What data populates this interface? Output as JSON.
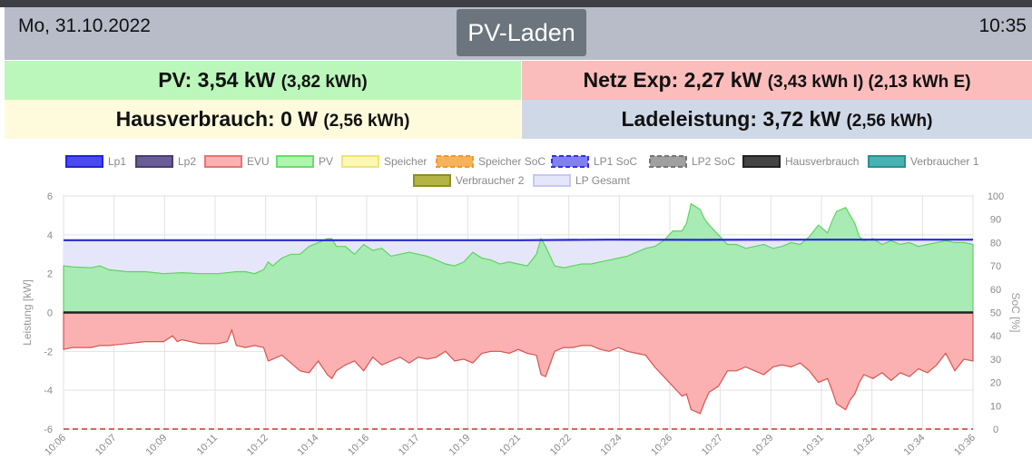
{
  "header": {
    "date": "Mo, 31.10.2022",
    "title": "PV-Laden",
    "time": "10:35"
  },
  "tiles": {
    "pv": {
      "main": "PV: 3,54 kW",
      "sub": "(3,82 kWh)"
    },
    "netz": {
      "main": "Netz Exp: 2,27 kW",
      "sub": "(3,43 kWh I) (2,13 kWh E)"
    },
    "haus": {
      "main": "Hausverbrauch: 0 W",
      "sub": "(2,56 kWh)"
    },
    "lade": {
      "main": "Ladeleistung: 3,72 kW",
      "sub": "(2,56 kWh)"
    }
  },
  "colors": {
    "pv_tile": "#bbf7bb",
    "netz_tile": "#fbbcbc",
    "haus_tile": "#fefbdd",
    "lade_tile": "#cfd8e6",
    "header": "#b7bcc8",
    "title_button": "#6c757d"
  },
  "chart_data": {
    "type": "area",
    "y_left_label": "Leistung [kW]",
    "y_right_label": "SoC [%]",
    "y_left_range": [
      -6,
      6
    ],
    "y_left_ticks": [
      "6",
      "4",
      "2",
      "0",
      "-2",
      "-4",
      "-6"
    ],
    "y_right_range": [
      0,
      100
    ],
    "y_right_ticks": [
      "100",
      "90",
      "80",
      "70",
      "60",
      "50",
      "40",
      "30",
      "20",
      "10",
      "0"
    ],
    "x_ticks": [
      "10:06",
      "10:07",
      "10:09",
      "10:11",
      "10:12",
      "10:14",
      "10:16",
      "10:17",
      "10:19",
      "10:21",
      "10:22",
      "10:24",
      "10:26",
      "10:27",
      "10:29",
      "10:31",
      "10:32",
      "10:34",
      "10:36"
    ],
    "grid": true,
    "legend_position": "top",
    "legend": [
      {
        "name": "Lp1",
        "fill": "#4a4af0",
        "stroke": "#2222dd",
        "dashed": false
      },
      {
        "name": "Lp2",
        "fill": "#6a5c94",
        "stroke": "#4a3c74",
        "dashed": false
      },
      {
        "name": "EVU",
        "fill": "#fbb1b1",
        "stroke": "#e87474",
        "dashed": false
      },
      {
        "name": "PV",
        "fill": "#aef5ae",
        "stroke": "#6bdc6b",
        "dashed": false
      },
      {
        "name": "Speicher",
        "fill": "#fdf7b4",
        "stroke": "#f0e37a",
        "dashed": false
      },
      {
        "name": "Speicher SoC",
        "fill": "#f7b25a",
        "stroke": "#f09a2c",
        "dashed": true
      },
      {
        "name": "LP1 SoC",
        "fill": "#8080f0",
        "stroke": "#3333dd",
        "dashed": true
      },
      {
        "name": "LP2 SoC",
        "fill": "#a0a0a0",
        "stroke": "#777777",
        "dashed": true
      },
      {
        "name": "Hausverbrauch",
        "fill": "#444444",
        "stroke": "#222222",
        "dashed": false
      },
      {
        "name": "Verbraucher 1",
        "fill": "#46b2b2",
        "stroke": "#2a9090",
        "dashed": false
      },
      {
        "name": "Verbraucher 2",
        "fill": "#b4b446",
        "stroke": "#8e8e2a",
        "dashed": false
      },
      {
        "name": "LP Gesamt",
        "fill": "#e6e6fa",
        "stroke": "#c8c8ee",
        "dashed": false
      }
    ],
    "series": [
      {
        "name": "PV",
        "unit": "kW",
        "points": [
          [
            0,
            2.4
          ],
          [
            0.01,
            2.35
          ],
          [
            0.03,
            2.3
          ],
          [
            0.04,
            2.4
          ],
          [
            0.05,
            2.2
          ],
          [
            0.07,
            2.1
          ],
          [
            0.09,
            2.1
          ],
          [
            0.11,
            2.0
          ],
          [
            0.13,
            2.05
          ],
          [
            0.15,
            2.0
          ],
          [
            0.17,
            2.0
          ],
          [
            0.19,
            2.1
          ],
          [
            0.2,
            2.1
          ],
          [
            0.21,
            2.0
          ],
          [
            0.22,
            2.2
          ],
          [
            0.225,
            2.6
          ],
          [
            0.23,
            2.4
          ],
          [
            0.24,
            2.8
          ],
          [
            0.25,
            3.0
          ],
          [
            0.26,
            3.0
          ],
          [
            0.27,
            3.4
          ],
          [
            0.28,
            3.6
          ],
          [
            0.29,
            3.8
          ],
          [
            0.295,
            3.8
          ],
          [
            0.3,
            3.4
          ],
          [
            0.31,
            3.4
          ],
          [
            0.32,
            3.0
          ],
          [
            0.33,
            3.5
          ],
          [
            0.34,
            3.2
          ],
          [
            0.35,
            3.3
          ],
          [
            0.36,
            2.9
          ],
          [
            0.37,
            3.0
          ],
          [
            0.38,
            3.1
          ],
          [
            0.39,
            3.0
          ],
          [
            0.4,
            2.9
          ],
          [
            0.41,
            2.7
          ],
          [
            0.42,
            2.5
          ],
          [
            0.43,
            2.4
          ],
          [
            0.44,
            2.6
          ],
          [
            0.45,
            3.1
          ],
          [
            0.46,
            2.8
          ],
          [
            0.47,
            2.7
          ],
          [
            0.48,
            2.5
          ],
          [
            0.49,
            2.6
          ],
          [
            0.5,
            2.5
          ],
          [
            0.51,
            2.4
          ],
          [
            0.52,
            3.0
          ],
          [
            0.525,
            3.8
          ],
          [
            0.53,
            3.4
          ],
          [
            0.54,
            2.4
          ],
          [
            0.55,
            2.3
          ],
          [
            0.56,
            2.4
          ],
          [
            0.57,
            2.5
          ],
          [
            0.58,
            2.5
          ],
          [
            0.59,
            2.6
          ],
          [
            0.6,
            2.7
          ],
          [
            0.61,
            2.8
          ],
          [
            0.62,
            2.9
          ],
          [
            0.63,
            3.1
          ],
          [
            0.64,
            3.3
          ],
          [
            0.65,
            3.4
          ],
          [
            0.66,
            3.7
          ],
          [
            0.67,
            4.2
          ],
          [
            0.68,
            4.2
          ],
          [
            0.685,
            4.6
          ],
          [
            0.69,
            5.6
          ],
          [
            0.7,
            5.3
          ],
          [
            0.705,
            4.8
          ],
          [
            0.71,
            4.5
          ],
          [
            0.72,
            4.0
          ],
          [
            0.73,
            3.5
          ],
          [
            0.74,
            3.5
          ],
          [
            0.75,
            3.3
          ],
          [
            0.76,
            3.4
          ],
          [
            0.77,
            3.5
          ],
          [
            0.78,
            3.3
          ],
          [
            0.79,
            3.4
          ],
          [
            0.8,
            3.6
          ],
          [
            0.81,
            3.5
          ],
          [
            0.82,
            3.9
          ],
          [
            0.83,
            4.5
          ],
          [
            0.84,
            4.1
          ],
          [
            0.845,
            4.7
          ],
          [
            0.85,
            5.2
          ],
          [
            0.86,
            5.4
          ],
          [
            0.865,
            5.0
          ],
          [
            0.87,
            4.6
          ],
          [
            0.875,
            3.9
          ],
          [
            0.88,
            3.7
          ],
          [
            0.89,
            3.8
          ],
          [
            0.9,
            3.5
          ],
          [
            0.91,
            3.7
          ],
          [
            0.92,
            3.5
          ],
          [
            0.93,
            3.6
          ],
          [
            0.94,
            3.4
          ],
          [
            0.95,
            3.5
          ],
          [
            0.96,
            3.6
          ],
          [
            0.97,
            3.7
          ],
          [
            0.98,
            3.6
          ],
          [
            0.99,
            3.6
          ],
          [
            1,
            3.5
          ]
        ]
      },
      {
        "name": "EVU",
        "unit": "kW",
        "points": [
          [
            0,
            -1.9
          ],
          [
            0.01,
            -1.8
          ],
          [
            0.03,
            -1.8
          ],
          [
            0.04,
            -1.7
          ],
          [
            0.05,
            -1.7
          ],
          [
            0.07,
            -1.6
          ],
          [
            0.09,
            -1.5
          ],
          [
            0.11,
            -1.5
          ],
          [
            0.12,
            -1.2
          ],
          [
            0.125,
            -1.5
          ],
          [
            0.13,
            -1.4
          ],
          [
            0.15,
            -1.6
          ],
          [
            0.17,
            -1.6
          ],
          [
            0.18,
            -1.5
          ],
          [
            0.185,
            -0.9
          ],
          [
            0.19,
            -1.7
          ],
          [
            0.2,
            -1.8
          ],
          [
            0.21,
            -1.7
          ],
          [
            0.22,
            -1.8
          ],
          [
            0.225,
            -2.5
          ],
          [
            0.23,
            -2.4
          ],
          [
            0.24,
            -2.2
          ],
          [
            0.25,
            -2.6
          ],
          [
            0.26,
            -3.0
          ],
          [
            0.27,
            -3.1
          ],
          [
            0.28,
            -2.5
          ],
          [
            0.29,
            -3.2
          ],
          [
            0.295,
            -3.4
          ],
          [
            0.3,
            -3.0
          ],
          [
            0.31,
            -2.7
          ],
          [
            0.32,
            -2.5
          ],
          [
            0.33,
            -3.0
          ],
          [
            0.34,
            -2.3
          ],
          [
            0.35,
            -2.7
          ],
          [
            0.36,
            -2.5
          ],
          [
            0.37,
            -2.3
          ],
          [
            0.38,
            -2.6
          ],
          [
            0.39,
            -2.3
          ],
          [
            0.4,
            -2.4
          ],
          [
            0.41,
            -2.3
          ],
          [
            0.42,
            -2.0
          ],
          [
            0.43,
            -2.5
          ],
          [
            0.44,
            -2.4
          ],
          [
            0.45,
            -2.6
          ],
          [
            0.46,
            -2.1
          ],
          [
            0.47,
            -2.0
          ],
          [
            0.48,
            -2.0
          ],
          [
            0.49,
            -2.1
          ],
          [
            0.5,
            -1.9
          ],
          [
            0.51,
            -2.1
          ],
          [
            0.52,
            -2.2
          ],
          [
            0.525,
            -3.2
          ],
          [
            0.53,
            -3.3
          ],
          [
            0.54,
            -2.0
          ],
          [
            0.55,
            -1.8
          ],
          [
            0.56,
            -1.8
          ],
          [
            0.57,
            -1.7
          ],
          [
            0.58,
            -1.7
          ],
          [
            0.59,
            -1.9
          ],
          [
            0.6,
            -2.0
          ],
          [
            0.61,
            -1.8
          ],
          [
            0.62,
            -2.0
          ],
          [
            0.63,
            -2.1
          ],
          [
            0.64,
            -2.2
          ],
          [
            0.65,
            -2.8
          ],
          [
            0.66,
            -3.3
          ],
          [
            0.67,
            -3.8
          ],
          [
            0.68,
            -4.3
          ],
          [
            0.685,
            -4.2
          ],
          [
            0.69,
            -5.0
          ],
          [
            0.7,
            -5.2
          ],
          [
            0.705,
            -4.6
          ],
          [
            0.71,
            -4.1
          ],
          [
            0.72,
            -3.8
          ],
          [
            0.73,
            -3.0
          ],
          [
            0.74,
            -3.0
          ],
          [
            0.75,
            -2.8
          ],
          [
            0.76,
            -3.0
          ],
          [
            0.77,
            -3.2
          ],
          [
            0.78,
            -2.8
          ],
          [
            0.79,
            -2.7
          ],
          [
            0.8,
            -2.8
          ],
          [
            0.81,
            -2.6
          ],
          [
            0.82,
            -3.0
          ],
          [
            0.83,
            -3.6
          ],
          [
            0.84,
            -3.4
          ],
          [
            0.845,
            -4.0
          ],
          [
            0.85,
            -4.7
          ],
          [
            0.86,
            -5.0
          ],
          [
            0.865,
            -4.5
          ],
          [
            0.87,
            -4.2
          ],
          [
            0.875,
            -3.6
          ],
          [
            0.88,
            -3.2
          ],
          [
            0.89,
            -3.4
          ],
          [
            0.9,
            -3.1
          ],
          [
            0.91,
            -3.5
          ],
          [
            0.92,
            -3.1
          ],
          [
            0.93,
            -3.3
          ],
          [
            0.94,
            -2.9
          ],
          [
            0.95,
            -3.1
          ],
          [
            0.96,
            -2.7
          ],
          [
            0.97,
            -2.1
          ],
          [
            0.98,
            -3.0
          ],
          [
            0.99,
            -2.4
          ],
          [
            1,
            -2.5
          ]
        ]
      },
      {
        "name": "Lp1",
        "unit": "kW",
        "points": [
          [
            0,
            3.72
          ],
          [
            0.5,
            3.72
          ],
          [
            0.6,
            3.75
          ],
          [
            0.7,
            3.74
          ],
          [
            0.8,
            3.75
          ],
          [
            0.9,
            3.75
          ],
          [
            1,
            3.75
          ]
        ]
      },
      {
        "name": "LP Gesamt",
        "unit": "kW",
        "points": [
          [
            0,
            3.72
          ],
          [
            0.5,
            3.72
          ],
          [
            0.6,
            3.75
          ],
          [
            0.7,
            3.74
          ],
          [
            0.8,
            3.75
          ],
          [
            0.9,
            3.75
          ],
          [
            1,
            3.75
          ]
        ]
      },
      {
        "name": "Hausverbrauch",
        "unit": "kW",
        "points": [
          [
            0,
            0
          ],
          [
            1,
            0
          ]
        ]
      },
      {
        "name": "Speicher SoC",
        "unit": "%",
        "points": [
          [
            0,
            0
          ],
          [
            1,
            0
          ]
        ]
      }
    ]
  }
}
